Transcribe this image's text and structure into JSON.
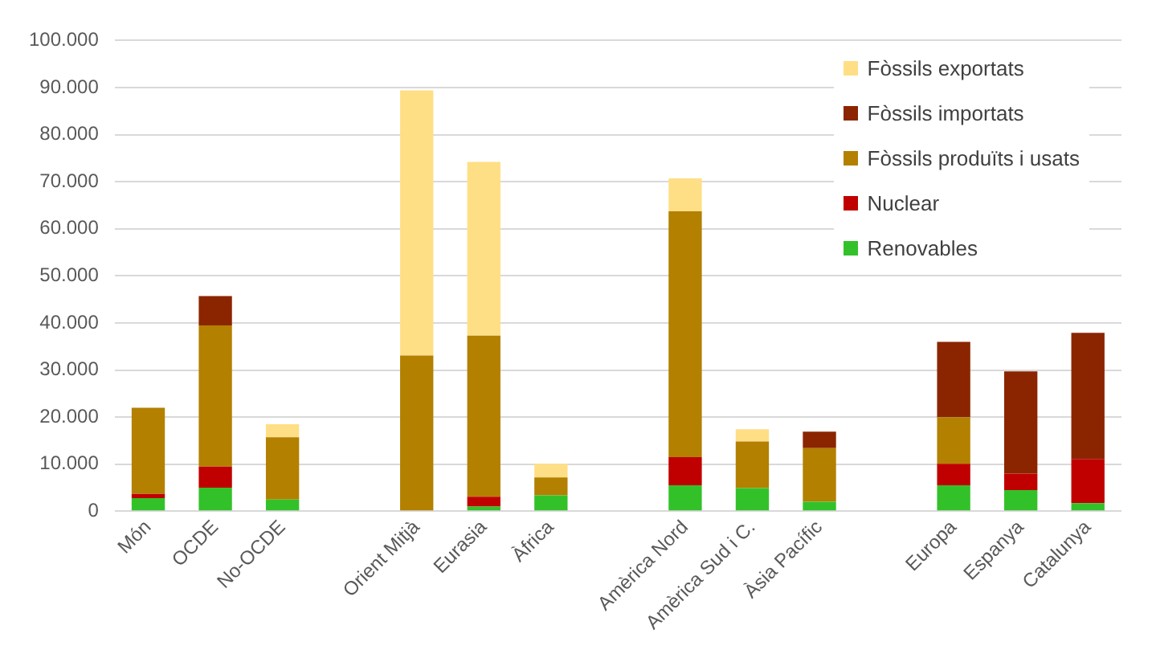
{
  "chart_data": {
    "type": "bar",
    "stacked": true,
    "grid": "y",
    "legend": "top right",
    "categories": [
      "Món",
      "OCDE",
      "No-OCDE",
      null,
      "Orient Mitjà",
      "Eurasia",
      "Àfrica",
      null,
      "Amèrica Nord",
      "Amèrica Sud i C.",
      "Àsia Pacífic",
      null,
      "Europa",
      "Espanya",
      "Catalunya"
    ],
    "series": [
      {
        "name": "Renovables",
        "color": "#33c12a",
        "values": [
          2800,
          5000,
          2500,
          null,
          null,
          1000,
          3400,
          null,
          5500,
          4900,
          2000,
          null,
          5500,
          4500,
          1700
        ]
      },
      {
        "name": "Nuclear",
        "color": "#c00000",
        "values": [
          900,
          4500,
          null,
          null,
          null,
          2100,
          null,
          null,
          6000,
          null,
          null,
          null,
          4600,
          3500,
          9400
        ]
      },
      {
        "name": "Fòssils produïts i usats",
        "color": "#b38000",
        "values": [
          18300,
          30000,
          13200,
          null,
          33100,
          34200,
          3800,
          null,
          52200,
          9900,
          11400,
          null,
          9900,
          null,
          null
        ]
      },
      {
        "name": "Fòssils importats",
        "color": "#8b2500",
        "values": [
          null,
          6200,
          null,
          null,
          null,
          null,
          null,
          null,
          null,
          null,
          3500,
          null,
          16000,
          21700,
          26800
        ]
      },
      {
        "name": "Fòssils exportats",
        "color": "#ffdf85",
        "values": [
          null,
          null,
          2800,
          null,
          56300,
          36900,
          2900,
          null,
          7000,
          2600,
          null,
          null,
          null,
          null,
          null
        ]
      }
    ],
    "ylim": [
      0,
      100000
    ],
    "yticks": [
      0,
      {
        "value": 10000,
        "label": "10.000"
      },
      {
        "value": 20000,
        "label": "20.000"
      },
      {
        "value": 30000,
        "label": "30.000"
      },
      {
        "value": 40000,
        "label": "40.000"
      },
      {
        "value": 50000,
        "label": "50.000"
      },
      {
        "value": 60000,
        "label": "60.000"
      },
      {
        "value": 70000,
        "label": "70.000"
      },
      {
        "value": 80000,
        "label": "80.000"
      },
      {
        "value": 90000,
        "label": "90.000"
      },
      {
        "value": 100000,
        "label": "100.000"
      }
    ]
  }
}
